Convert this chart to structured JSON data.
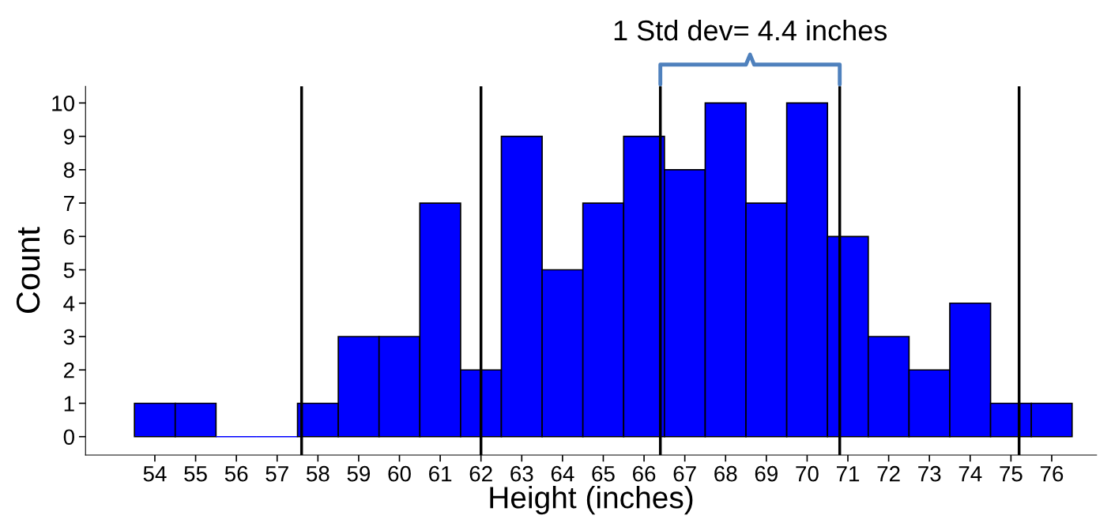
{
  "chart_data": {
    "type": "histogram",
    "xlabel": "Height (inches)",
    "ylabel": "Count",
    "bins": [
      53.5,
      54.5,
      55.5,
      56.5,
      57.5,
      58.5,
      59.5,
      60.5,
      61.5,
      62.5,
      63.5,
      64.5,
      65.5,
      66.5,
      67.5,
      68.5,
      69.5,
      70.5,
      71.5,
      72.5,
      73.5,
      74.5,
      75.5,
      76.5
    ],
    "values": [
      1,
      1,
      0,
      0,
      1,
      3,
      3,
      7,
      2,
      9,
      5,
      7,
      9,
      8,
      10,
      7,
      10,
      6,
      3,
      2,
      4,
      1,
      1
    ],
    "color": "#0000ff",
    "xlim": [
      52.3,
      77.1
    ],
    "ylim": [
      -0.55,
      10.5
    ],
    "xticks": [
      54,
      55,
      56,
      57,
      58,
      59,
      60,
      61,
      62,
      63,
      64,
      65,
      66,
      67,
      68,
      69,
      70,
      71,
      72,
      73,
      74,
      75,
      76
    ],
    "yticks": [
      0,
      1,
      2,
      3,
      4,
      5,
      6,
      7,
      8,
      9,
      10
    ],
    "ref_lines": [
      {
        "axis": "x",
        "value": 57.6,
        "color": "#000000"
      },
      {
        "axis": "x",
        "value": 62.0,
        "color": "#000000"
      },
      {
        "axis": "x",
        "value": 66.4,
        "color": "#000000"
      },
      {
        "axis": "x",
        "value": 70.8,
        "color": "#000000"
      },
      {
        "axis": "x",
        "value": 75.2,
        "color": "#000000"
      }
    ],
    "annotations": [
      "1 Std dev= 4.4 inches"
    ],
    "grid": false,
    "legend": false
  }
}
